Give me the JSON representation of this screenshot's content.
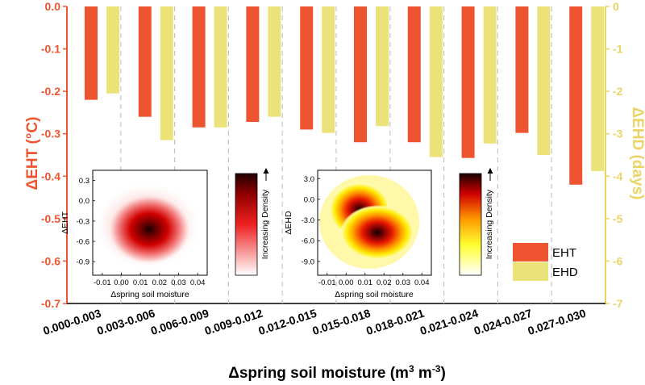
{
  "chart_data": {
    "type": "bar",
    "xlabel": "Δspring soil moisture (m³ m⁻³)",
    "categories": [
      "0.000-0.003",
      "0.003-0.006",
      "0.006-0.009",
      "0.009-0.012",
      "0.012-0.015",
      "0.015-0.018",
      "0.018-0.021",
      "0.021-0.024",
      "0.024-0.027",
      "0.027-0.030"
    ],
    "y_left": {
      "label": "ΔEHT (°C)",
      "ylim": [
        -0.7,
        0.0
      ],
      "ticks": [
        "0.0",
        "-0.1",
        "-0.2",
        "-0.3",
        "-0.4",
        "-0.5",
        "-0.6",
        "-0.7"
      ],
      "color": "#ef5430"
    },
    "y_right": {
      "label": "ΔEHD (days)",
      "ylim": [
        -7,
        0
      ],
      "ticks": [
        "0",
        "-1",
        "-2",
        "-3",
        "-4",
        "-5",
        "-6",
        "-7"
      ],
      "color": "#ebd466"
    },
    "series": [
      {
        "name": "EHT",
        "axis": "left",
        "color": "#ef5430",
        "values": [
          -0.22,
          -0.26,
          -0.285,
          -0.272,
          -0.29,
          -0.32,
          -0.32,
          -0.357,
          -0.298,
          -0.42
        ]
      },
      {
        "name": "EHD",
        "axis": "right",
        "color": "#ebe37a",
        "values": [
          -2.05,
          -3.15,
          -2.85,
          -2.6,
          -2.98,
          -2.82,
          -3.55,
          -3.23,
          -3.5,
          -3.88
        ]
      }
    ],
    "legend": {
      "position": "bottom-right",
      "items": [
        "EHT",
        "EHD"
      ]
    },
    "grid": "vertical dashed separators between categories",
    "insets": [
      {
        "type": "heatmap",
        "xlabel": "Δspring soil moisture",
        "ylabel": "ΔEHT",
        "xticks": [
          "-0.01",
          "0.00",
          "0.01",
          "0.02",
          "0.03",
          "0.04"
        ],
        "yticks": [
          "0.3",
          "0.0",
          "-0.3",
          "-0.6",
          "-0.9"
        ],
        "colorbar_label": "Increasing Density",
        "colormap": "white-red-black"
      },
      {
        "type": "heatmap",
        "xlabel": "Δspring soil moisture",
        "ylabel": "ΔEHD",
        "xticks": [
          "-0.01",
          "0.00",
          "0.01",
          "0.02",
          "0.03",
          "0.04"
        ],
        "yticks": [
          "3.0",
          "0.0",
          "-3.0",
          "-6.0",
          "-9.0"
        ],
        "colorbar_label": "Increasing Density",
        "colormap": "white-yellow-red-black"
      }
    ]
  }
}
